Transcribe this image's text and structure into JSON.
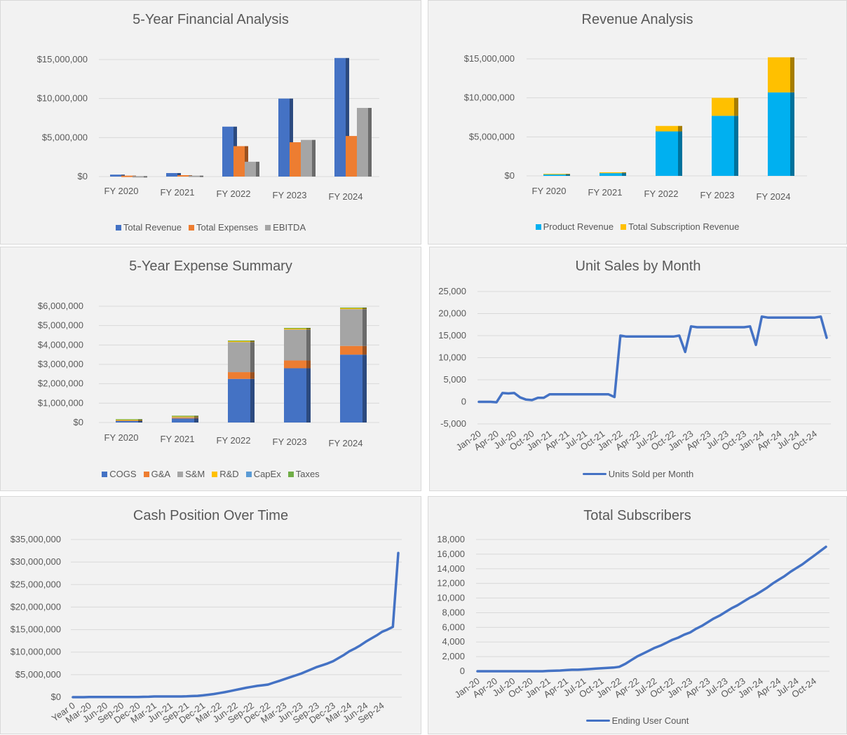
{
  "chart_data": [
    {
      "type": "bar",
      "title": "5-Year Financial Analysis",
      "mode": "clustered",
      "categories": [
        "FY 2020",
        "FY 2021",
        "FY 2022",
        "FY 2023",
        "FY 2024"
      ],
      "ylim": [
        0,
        15000000
      ],
      "yticks": [
        0,
        5000000,
        10000000,
        15000000
      ],
      "ytick_labels": [
        "$0",
        "$5,000,000",
        "$10,000,000",
        "$15,000,000"
      ],
      "grid": true,
      "legend": "bottom",
      "series": [
        {
          "name": "Total Revenue",
          "color": "#4472c4",
          "values": [
            250000,
            450000,
            6400000,
            10000000,
            15200000
          ]
        },
        {
          "name": "Total Expenses",
          "color": "#ed7d31",
          "values": [
            120000,
            180000,
            3900000,
            4400000,
            5200000
          ]
        },
        {
          "name": "EBITDA",
          "color": "#a5a5a5",
          "values": [
            60000,
            120000,
            1900000,
            4700000,
            8800000
          ]
        }
      ]
    },
    {
      "type": "bar",
      "title": "Revenue Analysis",
      "mode": "stacked",
      "categories": [
        "FY 2020",
        "FY 2021",
        "FY 2022",
        "FY 2023",
        "FY 2024"
      ],
      "ylim": [
        0,
        15000000
      ],
      "yticks": [
        0,
        5000000,
        10000000,
        15000000
      ],
      "ytick_labels": [
        "$0",
        "$5,000,000",
        "$10,000,000",
        "$15,000,000"
      ],
      "grid": true,
      "legend": "bottom",
      "series": [
        {
          "name": "Product Revenue",
          "color": "#00b0f0",
          "values": [
            200000,
            350000,
            5700000,
            7700000,
            10700000
          ]
        },
        {
          "name": "Total Subscription Revenue",
          "color": "#ffc000",
          "values": [
            60000,
            110000,
            700000,
            2300000,
            4500000
          ]
        }
      ]
    },
    {
      "type": "bar",
      "title": "5-Year Expense Summary",
      "mode": "stacked",
      "categories": [
        "FY 2020",
        "FY 2021",
        "FY 2022",
        "FY 2023",
        "FY 2024"
      ],
      "ylim": [
        0,
        6000000
      ],
      "yticks": [
        0,
        1000000,
        2000000,
        3000000,
        4000000,
        5000000,
        6000000
      ],
      "ytick_labels": [
        "$0",
        "$1,000,000",
        "$2,000,000",
        "$3,000,000",
        "$4,000,000",
        "$5,000,000",
        "$6,000,000"
      ],
      "grid": true,
      "legend": "bottom",
      "series": [
        {
          "name": "COGS",
          "color": "#4472c4",
          "values": [
            100000,
            220000,
            2250000,
            2800000,
            3500000
          ]
        },
        {
          "name": "G&A",
          "color": "#ed7d31",
          "values": [
            10000,
            20000,
            350000,
            400000,
            450000
          ]
        },
        {
          "name": "S&M",
          "color": "#a5a5a5",
          "values": [
            20000,
            40000,
            1550000,
            1600000,
            1900000
          ]
        },
        {
          "name": "R&D",
          "color": "#ffc000",
          "values": [
            10000,
            30000,
            60000,
            60000,
            60000
          ]
        },
        {
          "name": "CapEx",
          "color": "#5b9bd5",
          "values": [
            0,
            0,
            0,
            0,
            0
          ]
        },
        {
          "name": "Taxes",
          "color": "#70ad47",
          "values": [
            30000,
            40000,
            20000,
            20000,
            20000
          ]
        }
      ]
    },
    {
      "type": "line",
      "title": "Unit Sales by Month",
      "ylim": [
        -5000,
        25000
      ],
      "yticks": [
        -5000,
        0,
        5000,
        10000,
        15000,
        20000,
        25000
      ],
      "ytick_labels": [
        "-5,000",
        "0",
        "5,000",
        "10,000",
        "15,000",
        "20,000",
        "25,000"
      ],
      "x_labels": [
        "Jan-20",
        "Apr-20",
        "Jul-20",
        "Oct-20",
        "Jan-21",
        "Apr-21",
        "Jul-21",
        "Oct-21",
        "Jan-22",
        "Apr-22",
        "Jul-22",
        "Oct-22",
        "Jan-23",
        "Apr-23",
        "Jul-23",
        "Oct-23",
        "Jan-24",
        "Apr-24",
        "Jul-24",
        "Oct-24"
      ],
      "grid": true,
      "legend": "bottom",
      "series": [
        {
          "name": "Units Sold per Month",
          "color": "#4472c4",
          "values": [
            0,
            0,
            0,
            -100,
            2000,
            1900,
            2000,
            1000,
            500,
            400,
            900,
            900,
            1700,
            1700,
            1700,
            1700,
            1700,
            1700,
            1700,
            1700,
            1700,
            1700,
            1700,
            1100,
            15000,
            14800,
            14800,
            14800,
            14800,
            14800,
            14800,
            14800,
            14800,
            14800,
            15000,
            11300,
            17100,
            16900,
            16900,
            16900,
            16900,
            16900,
            16900,
            16900,
            16900,
            16900,
            17100,
            12900,
            19300,
            19100,
            19100,
            19100,
            19100,
            19100,
            19100,
            19100,
            19100,
            19100,
            19300,
            14500
          ]
        }
      ]
    },
    {
      "type": "line",
      "title": "Cash Position Over Time",
      "ylim": [
        0,
        35000000
      ],
      "yticks": [
        0,
        5000000,
        10000000,
        15000000,
        20000000,
        25000000,
        30000000,
        35000000
      ],
      "ytick_labels": [
        "$0",
        "$5,000,000",
        "$10,000,000",
        "$15,000,000",
        "$20,000,000",
        "$25,000,000",
        "$30,000,000",
        "$35,000,000"
      ],
      "x_labels": [
        "Year 0",
        "Mar-20",
        "Jun-20",
        "Sep-20",
        "Dec-20",
        "Mar-21",
        "Jun-21",
        "Sep-21",
        "Dec-21",
        "Mar-22",
        "Jun-22",
        "Sep-22",
        "Dec-22",
        "Mar-23",
        "Jun-23",
        "Sep-23",
        "Dec-23",
        "Mar-24",
        "Jun-24",
        "Sep-24"
      ],
      "grid": true,
      "series": [
        {
          "color": "#4472c4",
          "values": [
            0,
            0,
            0,
            50000,
            50000,
            50000,
            50000,
            50000,
            50000,
            50000,
            50000,
            50000,
            50000,
            80000,
            100000,
            150000,
            150000,
            150000,
            150000,
            150000,
            160000,
            180000,
            250000,
            300000,
            400000,
            550000,
            700000,
            900000,
            1100000,
            1350000,
            1600000,
            1850000,
            2100000,
            2300000,
            2500000,
            2650000,
            2800000,
            3200000,
            3600000,
            4000000,
            4400000,
            4800000,
            5200000,
            5700000,
            6200000,
            6700000,
            7100000,
            7500000,
            8000000,
            8700000,
            9400000,
            10200000,
            10800000,
            11500000,
            12300000,
            13000000,
            13700000,
            14500000,
            15000000,
            15600000,
            32000000
          ]
        }
      ]
    },
    {
      "type": "line",
      "title": "Total Subscribers",
      "ylim": [
        0,
        18000
      ],
      "yticks": [
        0,
        2000,
        4000,
        6000,
        8000,
        10000,
        12000,
        14000,
        16000,
        18000
      ],
      "ytick_labels": [
        "0",
        "2,000",
        "4,000",
        "6,000",
        "8,000",
        "10,000",
        "12,000",
        "14,000",
        "16,000",
        "18,000"
      ],
      "x_labels": [
        "Jan-20",
        "Apr-20",
        "Jul-20",
        "Oct-20",
        "Jan-21",
        "Apr-21",
        "Jul-21",
        "Oct-21",
        "Jan-22",
        "Apr-22",
        "Jul-22",
        "Oct-22",
        "Jan-23",
        "Apr-23",
        "Jul-23",
        "Oct-23",
        "Jan-24",
        "Apr-24",
        "Jul-24",
        "Oct-24"
      ],
      "grid": true,
      "legend": "bottom",
      "series": [
        {
          "name": "Ending User Count",
          "color": "#4472c4",
          "values": [
            0,
            0,
            0,
            0,
            0,
            0,
            0,
            0,
            0,
            0,
            0,
            0,
            50,
            80,
            100,
            150,
            200,
            200,
            250,
            300,
            350,
            400,
            450,
            500,
            600,
            1000,
            1500,
            2000,
            2400,
            2800,
            3200,
            3500,
            3900,
            4300,
            4600,
            5000,
            5300,
            5800,
            6200,
            6700,
            7200,
            7600,
            8100,
            8600,
            9000,
            9500,
            10000,
            10400,
            10900,
            11400,
            12000,
            12500,
            13000,
            13600,
            14100,
            14600,
            15200,
            15800,
            16400,
            17000
          ]
        }
      ]
    }
  ]
}
